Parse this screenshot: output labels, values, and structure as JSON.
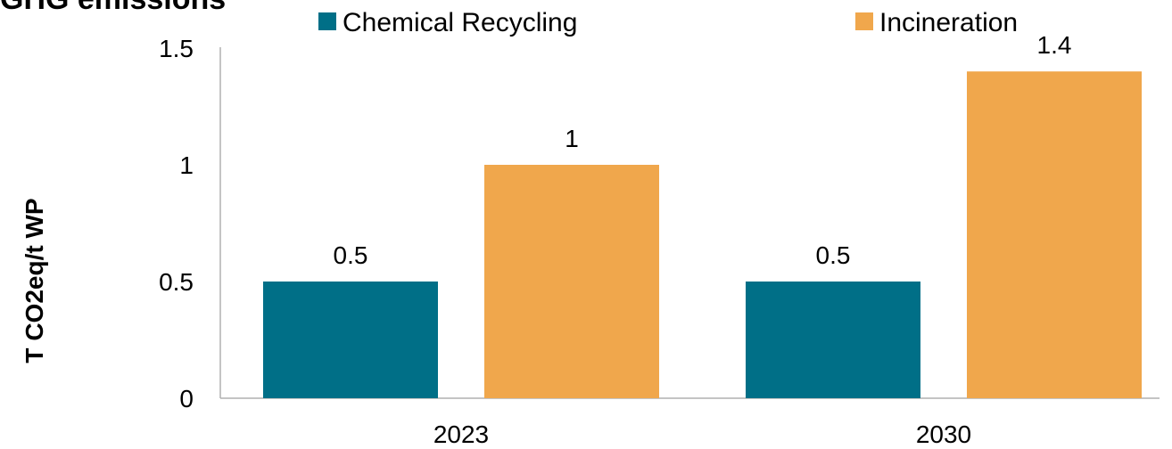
{
  "chart_data": {
    "type": "bar",
    "title": "GHG emissions",
    "ylabel": "T CO2eq/t WP",
    "xlabel": "",
    "categories": [
      "2023",
      "2030"
    ],
    "series": [
      {
        "name": "Chemical Recycling",
        "values": [
          0.5,
          0.5
        ],
        "color": "#006f87"
      },
      {
        "name": "Incineration",
        "values": [
          1,
          1.4
        ],
        "color": "#f0a74c"
      }
    ],
    "data_labels": [
      [
        "0.5",
        "0.5"
      ],
      [
        "1",
        "1.4"
      ]
    ],
    "yticks": [
      "0",
      "0.5",
      "1",
      "1.5"
    ],
    "ylim": [
      0,
      1.5
    ],
    "grid": false,
    "legend_position": "top"
  }
}
